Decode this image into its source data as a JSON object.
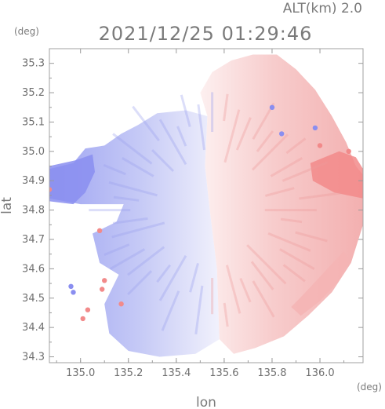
{
  "header": {
    "altitude_label": "ALT(km) 2.0",
    "timestamp": "2021/12/25 01:29:46"
  },
  "chart_data": {
    "type": "heatmap",
    "title": "2021/12/25 01:29:46",
    "subtitle": "ALT(km) 2.0",
    "xlabel": "lon",
    "ylabel": "lat",
    "x_unit": "(deg)",
    "y_unit": "(deg)",
    "xlim": [
      134.87,
      136.18
    ],
    "ylim": [
      34.28,
      35.35
    ],
    "x_ticks": [
      135.0,
      135.2,
      135.4,
      135.6,
      135.8,
      136.0
    ],
    "x_tick_labels": [
      "135.0",
      "135.2",
      "135.4",
      "135.6",
      "135.8",
      "136.0"
    ],
    "y_ticks": [
      34.3,
      34.4,
      34.5,
      34.6,
      34.7,
      34.8,
      34.9,
      35.0,
      35.1,
      35.2,
      35.3
    ],
    "y_tick_labels": [
      "34.3",
      "34.4",
      "34.5",
      "34.6",
      "34.7",
      "34.8",
      "34.9",
      "35.0",
      "35.1",
      "35.2",
      "35.3"
    ],
    "grid": false,
    "legend": "none",
    "colors": {
      "approaching": "#8a8ef0",
      "receding": "#f28a8a",
      "neutral": "#ffffff",
      "axis": "#9a9a9a"
    },
    "regions": [
      {
        "name": "approaching-west",
        "polarity": "approaching",
        "color": "#b8bdf5",
        "polygon": [
          [
            135.58,
            34.36
          ],
          [
            135.48,
            34.31
          ],
          [
            135.33,
            34.3
          ],
          [
            135.2,
            34.32
          ],
          [
            135.12,
            34.38
          ],
          [
            135.1,
            34.48
          ],
          [
            135.16,
            34.58
          ],
          [
            135.08,
            34.62
          ],
          [
            135.05,
            34.72
          ],
          [
            135.15,
            34.76
          ],
          [
            135.18,
            34.82
          ],
          [
            135.0,
            34.82
          ],
          [
            134.87,
            34.84
          ],
          [
            134.87,
            34.94
          ],
          [
            134.97,
            34.96
          ],
          [
            135.02,
            35.01
          ],
          [
            135.1,
            35.02
          ],
          [
            135.17,
            35.06
          ],
          [
            135.24,
            35.09
          ],
          [
            135.32,
            35.13
          ],
          [
            135.44,
            35.14
          ],
          [
            135.53,
            35.12
          ],
          [
            135.52,
            34.95
          ],
          [
            135.54,
            34.8
          ],
          [
            135.57,
            34.6
          ]
        ]
      },
      {
        "name": "receding-east",
        "polarity": "receding",
        "color": "#f5c2c2",
        "polygon": [
          [
            135.53,
            35.12
          ],
          [
            135.5,
            35.2
          ],
          [
            135.55,
            35.27
          ],
          [
            135.63,
            35.31
          ],
          [
            135.72,
            35.33
          ],
          [
            135.82,
            35.33
          ],
          [
            135.9,
            35.28
          ],
          [
            135.98,
            35.21
          ],
          [
            136.05,
            35.12
          ],
          [
            136.11,
            35.03
          ],
          [
            136.15,
            34.95
          ],
          [
            136.18,
            34.92
          ],
          [
            136.18,
            34.75
          ],
          [
            136.13,
            34.62
          ],
          [
            136.05,
            34.52
          ],
          [
            135.95,
            34.44
          ],
          [
            135.85,
            34.37
          ],
          [
            135.73,
            34.33
          ],
          [
            135.64,
            34.31
          ],
          [
            135.58,
            34.36
          ],
          [
            135.57,
            34.6
          ],
          [
            135.54,
            34.8
          ],
          [
            135.52,
            34.95
          ]
        ]
      },
      {
        "name": "strong-approaching-west-edge",
        "polarity": "approaching",
        "color": "#8a8ef0",
        "polygon": [
          [
            134.87,
            34.83
          ],
          [
            134.97,
            34.82
          ],
          [
            135.02,
            34.86
          ],
          [
            135.06,
            34.93
          ],
          [
            135.05,
            34.99
          ],
          [
            134.98,
            34.97
          ],
          [
            134.87,
            34.95
          ]
        ]
      },
      {
        "name": "strong-receding-east-edge",
        "polarity": "receding",
        "color": "#f28a8a",
        "polygon": [
          [
            135.96,
            34.96
          ],
          [
            136.08,
            35.0
          ],
          [
            136.15,
            34.98
          ],
          [
            136.18,
            34.94
          ],
          [
            136.18,
            34.84
          ],
          [
            136.06,
            34.86
          ],
          [
            135.97,
            34.9
          ]
        ]
      },
      {
        "name": "receding-southeast-band",
        "polarity": "receding",
        "color": "#f4b4b4",
        "polygon": [
          [
            135.92,
            34.44
          ],
          [
            136.0,
            34.49
          ],
          [
            136.08,
            34.56
          ],
          [
            136.12,
            34.63
          ],
          [
            136.1,
            34.66
          ],
          [
            136.02,
            34.59
          ],
          [
            135.94,
            34.52
          ],
          [
            135.88,
            34.47
          ]
        ]
      }
    ],
    "echoes": [
      {
        "lon": 134.87,
        "lat": 34.87,
        "polarity": "receding"
      },
      {
        "lon": 135.03,
        "lat": 34.46,
        "polarity": "receding"
      },
      {
        "lon": 135.01,
        "lat": 34.43,
        "polarity": "receding"
      },
      {
        "lon": 135.09,
        "lat": 34.53,
        "polarity": "receding"
      },
      {
        "lon": 135.1,
        "lat": 34.56,
        "polarity": "receding"
      },
      {
        "lon": 135.08,
        "lat": 34.73,
        "polarity": "receding"
      },
      {
        "lon": 135.17,
        "lat": 34.48,
        "polarity": "receding"
      },
      {
        "lon": 134.96,
        "lat": 34.54,
        "polarity": "approaching"
      },
      {
        "lon": 134.97,
        "lat": 34.52,
        "polarity": "approaching"
      },
      {
        "lon": 135.98,
        "lat": 35.08,
        "polarity": "approaching"
      },
      {
        "lon": 135.84,
        "lat": 35.06,
        "polarity": "approaching"
      },
      {
        "lon": 135.8,
        "lat": 35.15,
        "polarity": "approaching"
      },
      {
        "lon": 136.12,
        "lat": 35.0,
        "polarity": "receding"
      },
      {
        "lon": 136.0,
        "lat": 35.02,
        "polarity": "receding"
      }
    ]
  }
}
